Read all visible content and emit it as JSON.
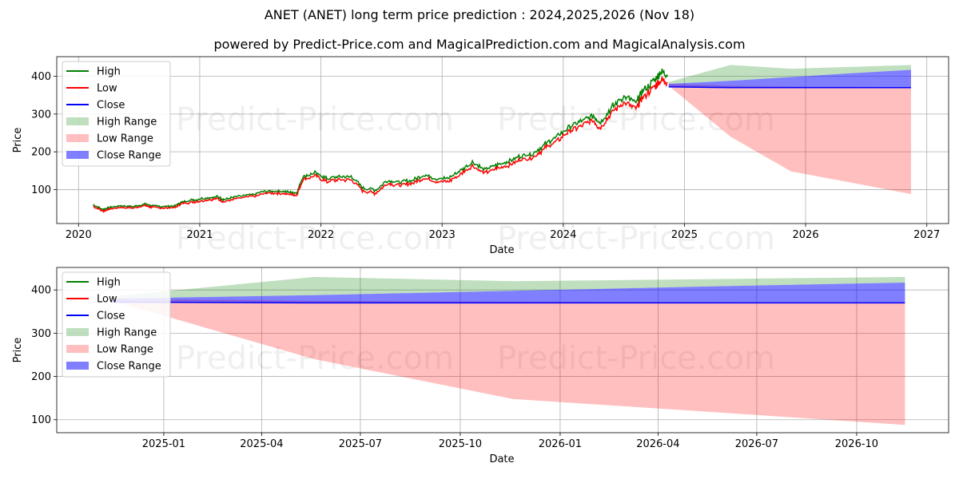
{
  "title": "ANET (ANET) long term price prediction : 2024,2025,2026 (Nov 18)",
  "subtitle": "powered by Predict-Price.com and MagicalPrediction.com and MagicalAnalysis.com",
  "watermark": "Predict-Price.com",
  "colors": {
    "high": "#008000",
    "low": "#ff0000",
    "close": "#0000ff",
    "high_range": "#008000",
    "low_range": "#ff0000",
    "close_range": "#0000ff"
  },
  "legend": [
    "High",
    "Low",
    "Close",
    "High Range",
    "Low Range",
    "Close Range"
  ],
  "chart_data": [
    {
      "type": "line",
      "xlabel": "Date",
      "ylabel": "Price",
      "xlim": [
        2019.82,
        2027.18
      ],
      "ylim": [
        10,
        452
      ],
      "xticks": [
        2020,
        2021,
        2022,
        2023,
        2024,
        2025,
        2026,
        2027
      ],
      "xtick_labels": [
        "2020",
        "2021",
        "2022",
        "2023",
        "2024",
        "2025",
        "2026",
        "2027"
      ],
      "yticks": [
        100,
        200,
        300,
        400
      ],
      "history": {
        "x": [
          2020.12,
          2020.2,
          2020.25,
          2020.35,
          2020.45,
          2020.55,
          2020.6,
          2020.7,
          2020.8,
          2020.85,
          2020.95,
          2021.05,
          2021.15,
          2021.2,
          2021.3,
          2021.45,
          2021.55,
          2021.65,
          2021.75,
          2021.8,
          2021.85,
          2021.95,
          2022.05,
          2022.15,
          2022.25,
          2022.35,
          2022.45,
          2022.55,
          2022.65,
          2022.75,
          2022.85,
          2022.95,
          2023.05,
          2023.15,
          2023.25,
          2023.35,
          2023.45,
          2023.55,
          2023.65,
          2023.75,
          2023.85,
          2023.95,
          2024.05,
          2024.15,
          2024.25,
          2024.3,
          2024.4,
          2024.5,
          2024.6,
          2024.65,
          2024.75,
          2024.8,
          2024.86
        ],
        "close": [
          58,
          45,
          50,
          55,
          53,
          60,
          55,
          53,
          55,
          65,
          70,
          75,
          78,
          70,
          78,
          85,
          93,
          93,
          90,
          88,
          130,
          140,
          125,
          130,
          130,
          100,
          95,
          120,
          115,
          120,
          135,
          125,
          125,
          145,
          168,
          148,
          160,
          170,
          185,
          190,
          215,
          235,
          260,
          275,
          290,
          270,
          310,
          340,
          320,
          350,
          380,
          400,
          395
        ],
        "spread": [
          3,
          3,
          3,
          3,
          3,
          3,
          3,
          3,
          3,
          3,
          4,
          4,
          4,
          4,
          4,
          4,
          4,
          4,
          4,
          4,
          6,
          6,
          6,
          6,
          6,
          6,
          6,
          6,
          6,
          6,
          6,
          6,
          6,
          7,
          7,
          7,
          7,
          7,
          7,
          7,
          8,
          8,
          9,
          9,
          10,
          10,
          11,
          12,
          12,
          12,
          13,
          14,
          14
        ]
      },
      "forecast": {
        "x": [
          2024.87,
          2025.38,
          2025.88,
          2026.38,
          2026.87
        ],
        "high_range_upper": [
          385,
          430,
          420,
          425,
          430
        ],
        "high_range_lower": [
          380,
          388,
          398,
          408,
          417
        ],
        "low_range_upper": [
          380,
          375,
          373,
          372,
          371
        ],
        "low_range_lower": [
          375,
          240,
          148,
          118,
          88
        ],
        "close_range_upper": [
          380,
          388,
          398,
          408,
          417
        ],
        "close_range_lower": [
          371,
          370,
          370,
          370,
          370
        ],
        "close": [
          372,
          370,
          370,
          370,
          370
        ]
      }
    },
    {
      "type": "line",
      "xlabel": "Date",
      "ylabel": "Price",
      "xlim": [
        2024.73,
        2026.98
      ],
      "ylim": [
        70,
        452
      ],
      "xticks": [
        2025.0,
        2025.247,
        2025.496,
        2025.748,
        2026.0,
        2026.247,
        2026.496,
        2026.748
      ],
      "xtick_labels": [
        "2025-01",
        "2025-04",
        "2025-07",
        "2025-10",
        "2026-01",
        "2026-04",
        "2026-07",
        "2026-10"
      ],
      "yticks": [
        100,
        200,
        300,
        400
      ],
      "forecast": {
        "x": [
          2024.87,
          2025.38,
          2025.88,
          2026.38,
          2026.87
        ],
        "high_range_upper": [
          385,
          430,
          420,
          425,
          430
        ],
        "high_range_lower": [
          380,
          388,
          398,
          408,
          417
        ],
        "low_range_upper": [
          380,
          375,
          373,
          372,
          371
        ],
        "low_range_lower": [
          375,
          240,
          148,
          118,
          88
        ],
        "close_range_upper": [
          380,
          388,
          398,
          408,
          417
        ],
        "close_range_lower": [
          371,
          370,
          370,
          370,
          370
        ],
        "close": [
          372,
          370,
          370,
          370,
          370
        ]
      }
    }
  ]
}
